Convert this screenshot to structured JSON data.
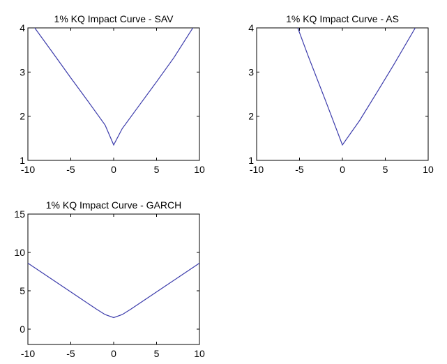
{
  "chart_data": [
    {
      "type": "line",
      "title": "1% KQ Impact Curve - SAV",
      "xlabel": "",
      "ylabel": "",
      "xlim": [
        -10,
        10
      ],
      "ylim": [
        1,
        4
      ],
      "xticks": [
        -10,
        -5,
        0,
        5,
        10
      ],
      "yticks": [
        1,
        2,
        3,
        4
      ],
      "grid": false,
      "series": [
        {
          "color": "#3b3bab",
          "x": [
            -10,
            -9.2,
            -7,
            -5,
            -3,
            -1,
            0,
            1,
            3,
            5,
            7,
            9.2,
            10
          ],
          "y": [
            4.2,
            4.0,
            3.41,
            2.87,
            2.34,
            1.8,
            1.35,
            1.72,
            2.25,
            2.78,
            3.32,
            3.99,
            4.2
          ]
        }
      ]
    },
    {
      "type": "line",
      "title": "1% KQ Impact Curve - AS",
      "xlabel": "",
      "ylabel": "",
      "xlim": [
        -10,
        10
      ],
      "ylim": [
        1,
        4
      ],
      "xticks": [
        -10,
        -5,
        0,
        5,
        10
      ],
      "yticks": [
        1,
        2,
        3,
        4
      ],
      "grid": false,
      "series": [
        {
          "color": "#3b3bab",
          "x": [
            -5.2,
            -4,
            -2,
            0,
            2,
            4,
            6,
            8.5
          ],
          "y": [
            4.0,
            3.37,
            2.37,
            1.35,
            1.9,
            2.53,
            3.17,
            4.0
          ]
        }
      ]
    },
    {
      "type": "line",
      "title": "1% KQ Impact Curve - GARCH",
      "xlabel": "",
      "ylabel": "",
      "xlim": [
        -10,
        10
      ],
      "ylim": [
        -2,
        15
      ],
      "xticks": [
        -10,
        -5,
        0,
        5,
        10
      ],
      "yticks": [
        0,
        5,
        10,
        15
      ],
      "grid": false,
      "series": [
        {
          "color": "#3b3bab",
          "x": [
            -10,
            -8,
            -6,
            -4,
            -2,
            -1,
            0,
            1,
            2,
            4,
            6,
            8,
            10
          ],
          "y": [
            8.6,
            7.1,
            5.6,
            4.1,
            2.6,
            1.9,
            1.5,
            1.9,
            2.6,
            4.1,
            5.6,
            7.1,
            8.6
          ]
        }
      ]
    }
  ]
}
